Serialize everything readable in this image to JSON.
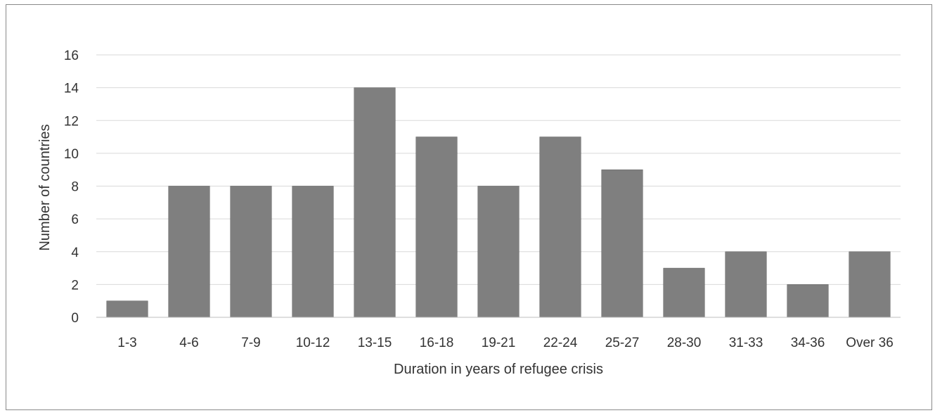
{
  "chart_data": {
    "type": "bar",
    "title": "",
    "xlabel": "Duration in years of refugee crisis",
    "ylabel": "Number of countries",
    "categories": [
      "1-3",
      "4-6",
      "7-9",
      "10-12",
      "13-15",
      "16-18",
      "19-21",
      "22-24",
      "25-27",
      "28-30",
      "31-33",
      "34-36",
      "Over 36"
    ],
    "values": [
      1,
      8,
      8,
      8,
      14,
      11,
      8,
      11,
      9,
      3,
      4,
      2,
      4
    ],
    "ylim": [
      0,
      16
    ],
    "yticks": [
      0,
      2,
      4,
      6,
      8,
      10,
      12,
      14,
      16
    ],
    "grid": true,
    "legend": "none",
    "colors": {
      "bar": "#7f7f7f",
      "grid": "#d9d9d9",
      "text": "#333333"
    }
  }
}
